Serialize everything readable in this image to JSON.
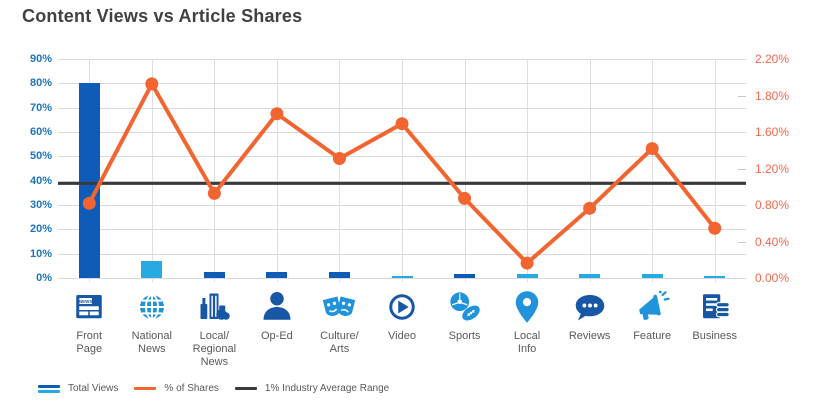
{
  "title": "Content Views vs Article Shares",
  "colors": {
    "bar_dark": "#0E5CB8",
    "bar_light": "#29A9E2",
    "line_orange": "#F26531",
    "reference_black": "#3A3A3C",
    "left_axis_text": "#1C75BC",
    "right_axis_text": "#F4684C",
    "title_text": "#414042",
    "category_text": "#58595B",
    "icon_dark": "#1757A6",
    "icon_light": "#2193DB",
    "grid": "#D8D9DA"
  },
  "chart_data": {
    "type": "combo",
    "title": "Content Views vs Article Shares",
    "categories": [
      "Front Page",
      "National News",
      "Local/Regional News",
      "Op-Ed",
      "Culture/Arts",
      "Video",
      "Sports",
      "Local Info",
      "Reviews",
      "Feature",
      "Business"
    ],
    "category_labels": [
      "Front\nPage",
      "National\nNews",
      "Local/\nRegional\nNews",
      "Op-Ed",
      "Culture/\nArts",
      "Video",
      "Sports",
      "Local\nInfo",
      "Reviews",
      "Feature",
      "Business"
    ],
    "category_icons": [
      "newspaper-icon",
      "globe-icon",
      "city-icon",
      "person-icon",
      "masks-icon",
      "play-icon",
      "sports-icon",
      "pin-icon",
      "speech-icon",
      "megaphone-icon",
      "business-coins-icon"
    ],
    "icon_tones": [
      "dark",
      "light",
      "dark",
      "dark",
      "light",
      "dark",
      "light",
      "light",
      "dark",
      "light",
      "dark"
    ],
    "series": [
      {
        "name": "Total Views",
        "type": "bar",
        "axis": "left",
        "unit": "%",
        "values": [
          80,
          7,
          2.5,
          2.5,
          2.5,
          1,
          1.5,
          1.5,
          1.5,
          1.5,
          1
        ],
        "bar_tones": [
          "dark",
          "light",
          "dark",
          "dark",
          "dark",
          "light",
          "dark",
          "light",
          "light",
          "light",
          "light"
        ]
      },
      {
        "name": "% of Shares",
        "type": "line",
        "axis": "right",
        "unit": "%",
        "values": [
          0.75,
          1.95,
          0.85,
          1.65,
          1.2,
          1.55,
          0.8,
          0.15,
          0.7,
          1.3,
          0.5
        ]
      },
      {
        "name": "1% Industry Average Range",
        "type": "reference_line",
        "axis": "right",
        "value": 0.95
      }
    ],
    "axes": {
      "left": {
        "min": 0,
        "max": 90,
        "ticks": [
          "90%",
          "80%",
          "70%",
          "60%",
          "50%",
          "40%",
          "30%",
          "20%",
          "10%",
          "0%"
        ]
      },
      "right": {
        "min": 0,
        "max": 2.2,
        "ticks": [
          "2.20%",
          "1.80%",
          "1.60%",
          "1.20%",
          "0.80%",
          "0.40%",
          "0.00%"
        ]
      }
    },
    "grid": true,
    "legend_position": "bottom"
  },
  "legend": {
    "items": [
      {
        "label": "Total Views"
      },
      {
        "label": "% of Shares"
      },
      {
        "label": "1% Industry Average Range"
      }
    ]
  }
}
